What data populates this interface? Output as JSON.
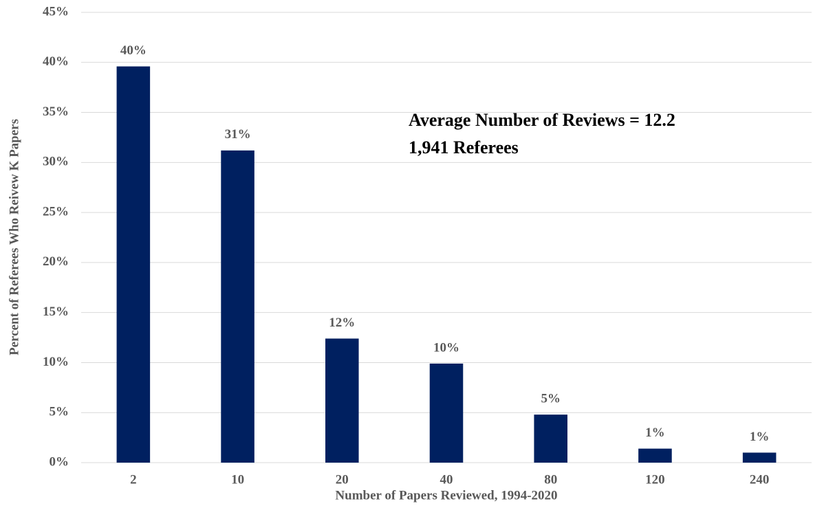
{
  "chart_data": {
    "type": "bar",
    "x_label": "Number of Papers Reviewed, 1994-2020",
    "y_label": "Percent of Referees Who Reivew K Papers",
    "annotations": [
      "Average Number of Reviews = 12.2",
      "1,941 Referees"
    ],
    "categories": [
      "2",
      "10",
      "20",
      "40",
      "80",
      "120",
      "240"
    ],
    "values": [
      39.6,
      31.2,
      12.4,
      9.9,
      4.8,
      1.4,
      1.0
    ],
    "value_labels": [
      "40%",
      "31%",
      "12%",
      "10%",
      "5%",
      "1%",
      "1%"
    ],
    "color": "#002060",
    "ylim": [
      0,
      45
    ],
    "yticks": [
      {
        "value": 0,
        "label": "0%"
      },
      {
        "value": 5,
        "label": "5%"
      },
      {
        "value": 10,
        "label": "10%"
      },
      {
        "value": 15,
        "label": "15%"
      },
      {
        "value": 20,
        "label": "20%"
      },
      {
        "value": 25,
        "label": "25%"
      },
      {
        "value": 30,
        "label": "30%"
      },
      {
        "value": 35,
        "label": "35%"
      },
      {
        "value": 40,
        "label": "40%"
      },
      {
        "value": 45,
        "label": "45%"
      }
    ],
    "grid": true
  }
}
